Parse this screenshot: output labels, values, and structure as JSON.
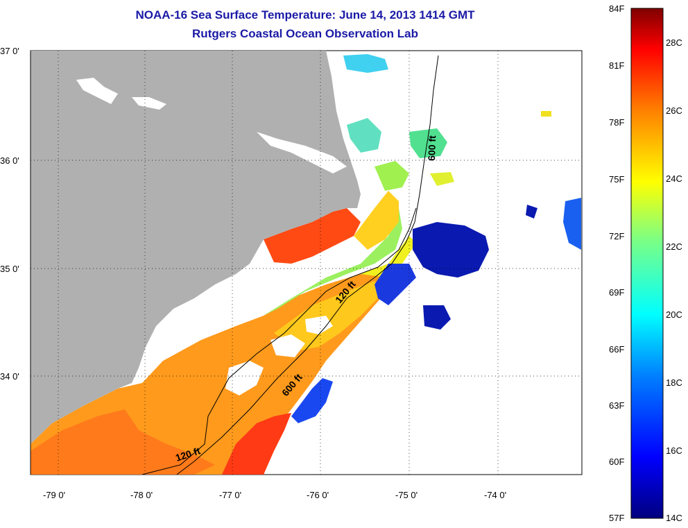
{
  "title": {
    "line1": "NOAA-16 Sea Surface Temperature:  June 14, 2013 1414 GMT",
    "line2": "Rutgers Coastal Ocean Observation Lab"
  },
  "axes": {
    "lat_labels": [
      "37 0'",
      "36 0'",
      "35 0'",
      "34 0'"
    ],
    "lon_labels": [
      "-79 0'",
      "-78 0'",
      "-77 0'",
      "-76 0'",
      "-75 0'",
      "-74 0'"
    ]
  },
  "contours": {
    "c600_north": "600 ft",
    "c120_mid": "120 ft",
    "c600_south": "600 ft",
    "c120_south": "120 ft"
  },
  "colorbar": {
    "f_labels": [
      "84F",
      "81F",
      "78F",
      "75F",
      "72F",
      "69F",
      "66F",
      "63F",
      "60F",
      "57F"
    ],
    "c_labels": [
      "28C",
      "26C",
      "24C",
      "22C",
      "20C",
      "18C",
      "16C",
      "14C"
    ]
  },
  "colors": {
    "land": "#b0b0b0",
    "title": "#1a1aa6"
  }
}
